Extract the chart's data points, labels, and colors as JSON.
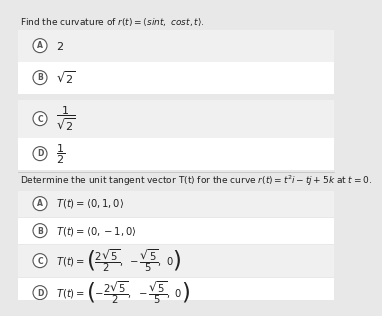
{
  "bg_color": "#e8e8e8",
  "q1_title": "Find the curvature of $r(t) = \\langle sint,\\ cost, t\\rangle$.",
  "q1_options": [
    {
      "label": "A",
      "text": "$2$",
      "highlighted": false
    },
    {
      "label": "B",
      "text": "$\\sqrt{2}$",
      "highlighted": false
    },
    {
      "label": "C",
      "text": "$\\dfrac{1}{\\sqrt{2}}$",
      "highlighted": false
    },
    {
      "label": "D",
      "text": "$\\dfrac{1}{2}$",
      "highlighted": false
    }
  ],
  "q2_title": "Determine the unit tangent vector T(t) for the curve $r(t) = t^{2}i - tj + 5k$ at $t = 0$.",
  "q2_options": [
    {
      "label": "A",
      "text": "$T(t) = \\langle 0, 1, 0\\rangle$",
      "highlighted": false
    },
    {
      "label": "B",
      "text": "$T(t) = \\langle 0, -1, 0\\rangle$",
      "highlighted": false
    },
    {
      "label": "C",
      "text": "$T(t) = \\left(\\dfrac{2\\sqrt{5}}{2}, -\\dfrac{\\sqrt{5}}{5}, 0\\right)$",
      "highlighted": false
    },
    {
      "label": "D",
      "text": "$T(t) = \\left(-\\dfrac{2\\sqrt{5}}{2}, -\\dfrac{\\sqrt{5}}{5}, 0\\right)$",
      "highlighted": false
    }
  ],
  "row_color_odd": "#f0f0f0",
  "row_color_even": "#ffffff",
  "text_color": "#222222",
  "circle_edge": "#555555",
  "title_fontsize": 6.5,
  "option_fontsize": 8.0,
  "q2_option_fontsize": 7.2
}
